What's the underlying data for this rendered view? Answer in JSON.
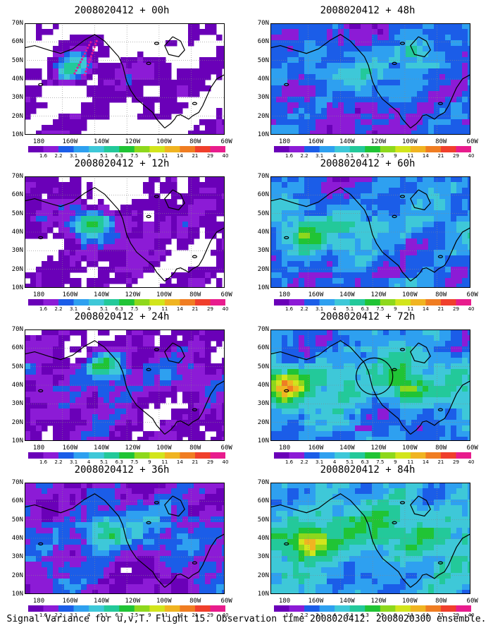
{
  "panels": [
    {
      "title": "2008020412 + 00h",
      "stage": 0,
      "col": 0,
      "row": 0,
      "hot": [
        [
          0.24,
          0.4,
          0.9
        ]
      ],
      "dots": true,
      "circle": false
    },
    {
      "title": "2008020412 + 48h",
      "stage": 4,
      "col": 1,
      "row": 0,
      "hot": [
        [
          0.72,
          0.25,
          0.45
        ]
      ],
      "dots": false,
      "circle": false
    },
    {
      "title": "2008020412 + 12h",
      "stage": 1,
      "col": 0,
      "row": 1,
      "hot": [
        [
          0.33,
          0.42,
          0.9
        ]
      ],
      "dots": false,
      "circle": false
    },
    {
      "title": "2008020412 + 60h",
      "stage": 5,
      "col": 1,
      "row": 1,
      "hot": [
        [
          0.15,
          0.55,
          0.4
        ]
      ],
      "dots": false,
      "circle": false
    },
    {
      "title": "2008020412 + 24h",
      "stage": 2,
      "col": 0,
      "row": 2,
      "hot": [
        [
          0.4,
          0.32,
          0.85
        ]
      ],
      "dots": false,
      "circle": false
    },
    {
      "title": "2008020412 + 72h",
      "stage": 6,
      "col": 1,
      "row": 2,
      "hot": [
        [
          0.08,
          0.52,
          0.7
        ],
        [
          0.68,
          0.55,
          0.5
        ]
      ],
      "dots": false,
      "circle": true
    },
    {
      "title": "2008020412 + 36h",
      "stage": 3,
      "col": 0,
      "row": 3,
      "hot": [
        [
          0.4,
          0.45,
          0.55
        ]
      ],
      "dots": false,
      "circle": false
    },
    {
      "title": "2008020412 + 84h",
      "stage": 7,
      "col": 1,
      "row": 3,
      "hot": [
        [
          0.2,
          0.55,
          0.6
        ]
      ],
      "dots": false,
      "circle": false
    }
  ],
  "lat_labels": [
    "70N",
    "60N",
    "50N",
    "40N",
    "30N",
    "20N",
    "10N"
  ],
  "lon_labels": [
    "180",
    "160W",
    "140W",
    "120W",
    "100W",
    "80W",
    "60W"
  ],
  "colorbar": {
    "labels": [
      "1.6",
      "2.2",
      "3.1",
      "4",
      "5.1",
      "6.3",
      "7.5",
      "9",
      "11",
      "14",
      "21",
      "29",
      "40"
    ],
    "colors": [
      "#6a00b8",
      "#8c1bd6",
      "#1b5de8",
      "#2ea0f0",
      "#3ec8d8",
      "#23c99a",
      "#20c435",
      "#8ed81c",
      "#d2e51c",
      "#f0b421",
      "#f07d22",
      "#f03f2c",
      "#e81c8d"
    ]
  },
  "caption": "Signal Variance for u,v,T. Flight 15. Observation time 2008020412. 2008020300 ensemble."
}
